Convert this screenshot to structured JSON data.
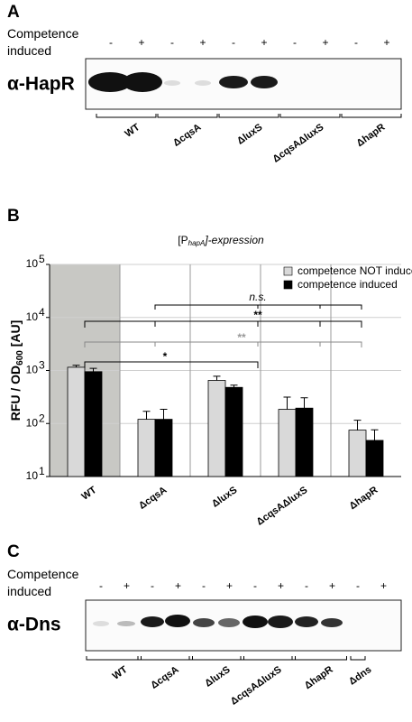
{
  "panel_a": {
    "letter": "A",
    "condition_label": "Competence induced",
    "lanes": [
      "-",
      "+",
      "-",
      "+",
      "-",
      "+",
      "-",
      "+",
      "-",
      "+"
    ],
    "antibody": "α-HapR",
    "strains": [
      "WT",
      "ΔcqsA",
      "ΔluxS",
      "ΔcqsAΔluxS",
      "ΔhapR"
    ]
  },
  "chart_data": {
    "type": "bar",
    "letter": "B",
    "title_parts": [
      "[P",
      "hapA",
      "]-expression"
    ],
    "ylabel_parts": [
      "RFU / OD",
      "600",
      " [AU]"
    ],
    "categories": [
      "WT",
      "ΔcqsA",
      "ΔluxS",
      "ΔcqsAΔluxS",
      "ΔhapR"
    ],
    "series": [
      {
        "name": "competence NOT induced",
        "color": "#d9d9d9",
        "values": [
          1150,
          120,
          650,
          185,
          75
        ],
        "errors": [
          100,
          50,
          130,
          130,
          40
        ]
      },
      {
        "name": "competence induced",
        "color": "#000000",
        "values": [
          950,
          120,
          480,
          195,
          48
        ],
        "errors": [
          150,
          65,
          50,
          110,
          28
        ]
      }
    ],
    "log_scale": true,
    "ylim": [
      10,
      100000
    ],
    "yticks": [
      {
        "value": 10,
        "label": "10",
        "exponent": "1"
      },
      {
        "value": 100,
        "label": "10",
        "exponent": "2"
      },
      {
        "value": 1000,
        "label": "10",
        "exponent": "3"
      },
      {
        "value": 10000,
        "label": "10",
        "exponent": "4"
      },
      {
        "value": 100000,
        "label": "10",
        "exponent": "5"
      }
    ],
    "grid": true,
    "legend": "top-right",
    "annotations": [
      "n.s.",
      "**",
      "**",
      "*"
    ]
  },
  "panel_c": {
    "letter": "C",
    "condition_label": "Competence induced",
    "lanes": [
      "-",
      "+",
      "-",
      "+",
      "-",
      "+",
      "-",
      "+",
      "-",
      "+",
      "-",
      "+"
    ],
    "antibody": "α-Dns",
    "strains": [
      "WT",
      "ΔcqsA",
      "ΔluxS",
      "ΔcqsAΔluxS",
      "ΔhapR",
      "Δdns"
    ]
  }
}
